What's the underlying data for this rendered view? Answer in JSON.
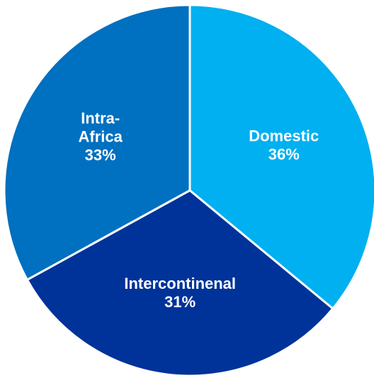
{
  "chart_data": {
    "type": "pie",
    "start_angle_deg": 0,
    "direction": "clockwise",
    "slices": [
      {
        "label_lines": [
          "Domestic"
        ],
        "percent_label": "36%",
        "value": 36,
        "color": "#00b0f0"
      },
      {
        "label_lines": [
          "Intercontinenal"
        ],
        "percent_label": "31%",
        "value": 31,
        "color": "#003399"
      },
      {
        "label_lines": [
          "Intra-",
          "Africa"
        ],
        "percent_label": "33%",
        "value": 33,
        "color": "#0070c0"
      }
    ]
  }
}
